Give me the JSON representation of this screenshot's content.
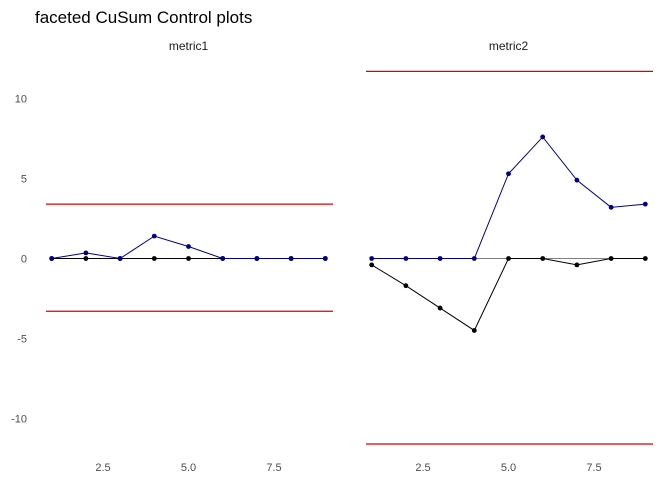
{
  "chart_data": {
    "type": "line",
    "title": "faceted CuSum Control plots",
    "xlabel": "",
    "ylabel": "",
    "x_ticks": [
      "2.5",
      "5.0",
      "7.5"
    ],
    "y_ticks": [
      "10",
      "5",
      "0",
      "-5",
      "-10"
    ],
    "xlim": [
      0.6,
      9.4
    ],
    "ylim": [
      -12.6,
      12.6
    ],
    "grid": false,
    "colors": {
      "upper_cusum": "#00008b",
      "lower_cusum": "#000000",
      "control_limit": "#dd0000",
      "center_line": "#7f7f7f"
    },
    "facets": [
      {
        "label": "metric1",
        "x": [
          1,
          2,
          3,
          4,
          5,
          6,
          7,
          8,
          9
        ],
        "upper_cusum": [
          0,
          0.35,
          0,
          1.4,
          0.75,
          0,
          0,
          0,
          0
        ],
        "lower_cusum": [
          0,
          0,
          0,
          0,
          0,
          0,
          0,
          0,
          0
        ],
        "upper_limit": 3.4,
        "lower_limit": -3.3
      },
      {
        "label": "metric2",
        "x": [
          1,
          2,
          3,
          4,
          5,
          6,
          7,
          8,
          9
        ],
        "upper_cusum": [
          0,
          0,
          0,
          0,
          5.3,
          7.6,
          4.9,
          3.2,
          3.4
        ],
        "lower_cusum": [
          -0.4,
          -1.7,
          -3.1,
          -4.5,
          0,
          0,
          -0.4,
          0,
          0
        ],
        "upper_limit": 11.7,
        "lower_limit": -11.6
      }
    ]
  }
}
